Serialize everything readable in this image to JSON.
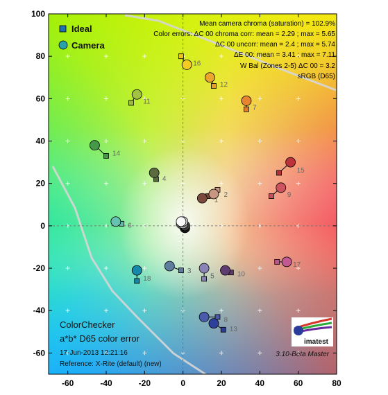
{
  "chart_data": {
    "type": "scatter",
    "xlim": [
      -70,
      80
    ],
    "ylim": [
      -70,
      100
    ],
    "x_ticks": [
      "-60",
      "-40",
      "-20",
      "0",
      "20",
      "40",
      "60",
      "80"
    ],
    "y_ticks": [
      "100",
      "80",
      "60",
      "40",
      "20",
      "0",
      "-20",
      "-40",
      "-60"
    ],
    "grid": false,
    "legend": {
      "position": "top-left",
      "ideal_label": "Ideal",
      "camera_label": "Camera"
    },
    "annotations": [
      "Mean camera chroma (saturation) = 102.9%",
      "Color errors: ΔC 00 chroma corr:  mean = 2.29 ;  max = 5.65",
      "ΔC 00 uncorr:  mean = 2.4 ;  max = 5.74",
      "ΔE 00:  mean = 3.41 ;  max = 7.11",
      "W Bal (Zones 2-5) ΔC 00 = 3.2",
      "sRGB (D65)"
    ],
    "footer": {
      "title1": "ColorChecker",
      "title2": "a*b* D65 color error",
      "date": "17-Jun-2013 12:21:16",
      "reference": "Reference: X-Rite (default) (new)",
      "version": "3.10-Beta  Master",
      "logo": "imatest"
    },
    "series": [
      {
        "name": "Ideal",
        "marker": "square",
        "points": [
          {
            "label": "1",
            "x": 13,
            "y": 14,
            "color": "#76483a"
          },
          {
            "label": "2",
            "x": 18,
            "y": 17,
            "color": "#c4947f"
          },
          {
            "label": "3",
            "x": -1,
            "y": -21,
            "color": "#5e7a9a"
          },
          {
            "label": "4",
            "x": -14,
            "y": 22,
            "color": "#586a3e"
          },
          {
            "label": "5",
            "x": 11,
            "y": -25,
            "color": "#8581b0"
          },
          {
            "label": "6",
            "x": -32,
            "y": 1,
            "color": "#62bcac"
          },
          {
            "label": "7",
            "x": 33,
            "y": 55,
            "color": "#e07e2e"
          },
          {
            "label": "8",
            "x": 18,
            "y": -43,
            "color": "#4b5aa5"
          },
          {
            "label": "9",
            "x": 46,
            "y": 14,
            "color": "#c4515c"
          },
          {
            "label": "10",
            "x": 25,
            "y": -22,
            "color": "#5d3c6b"
          },
          {
            "label": "11",
            "x": -27,
            "y": 58,
            "color": "#9dbb40"
          },
          {
            "label": "12",
            "x": 16,
            "y": 66,
            "color": "#e3a22b"
          },
          {
            "label": "13",
            "x": 21,
            "y": -49,
            "color": "#2c3f93"
          },
          {
            "label": "14",
            "x": -40,
            "y": 33,
            "color": "#459448"
          },
          {
            "label": "15",
            "x": 50,
            "y": 25,
            "color": "#b3323a"
          },
          {
            "label": "16",
            "x": -1,
            "y": 80,
            "color": "#eec51f"
          },
          {
            "label": "17",
            "x": 49,
            "y": -17,
            "color": "#bc568f"
          },
          {
            "label": "18",
            "x": -24,
            "y": -26,
            "color": "#1485a4"
          },
          {
            "label": "",
            "x": 0,
            "y": 0,
            "color": "#f3f3f2"
          },
          {
            "label": "",
            "x": 0,
            "y": 0,
            "color": "#c8c8c8"
          },
          {
            "label": "",
            "x": 0,
            "y": 0,
            "color": "#a0a0a0"
          },
          {
            "label": "",
            "x": 0,
            "y": 0,
            "color": "#7a7a7a"
          },
          {
            "label": "",
            "x": 0,
            "y": 0,
            "color": "#555555"
          },
          {
            "label": "",
            "x": 0,
            "y": 0,
            "color": "#343434"
          }
        ]
      },
      {
        "name": "Camera",
        "marker": "circle",
        "points": [
          {
            "label": "1",
            "x": 10,
            "y": 13,
            "color": "#7c4a3c"
          },
          {
            "label": "2",
            "x": 16,
            "y": 15,
            "color": "#c89682"
          },
          {
            "label": "3",
            "x": -7,
            "y": -19,
            "color": "#5f7d9e"
          },
          {
            "label": "4",
            "x": -15,
            "y": 25,
            "color": "#5a6c3f"
          },
          {
            "label": "5",
            "x": 11,
            "y": -20,
            "color": "#8a84b6"
          },
          {
            "label": "6",
            "x": -35,
            "y": 2,
            "color": "#66c2b0"
          },
          {
            "label": "7",
            "x": 33,
            "y": 59,
            "color": "#e88330"
          },
          {
            "label": "8",
            "x": 11,
            "y": -43,
            "color": "#4a5bac"
          },
          {
            "label": "9",
            "x": 51,
            "y": 18,
            "color": "#cc535f"
          },
          {
            "label": "10",
            "x": 22,
            "y": -21,
            "color": "#5e3c70"
          },
          {
            "label": "11",
            "x": -24,
            "y": 62,
            "color": "#a2c243"
          },
          {
            "label": "12",
            "x": 14,
            "y": 70,
            "color": "#eba62d"
          },
          {
            "label": "13",
            "x": 16,
            "y": -46,
            "color": "#2d409c"
          },
          {
            "label": "14",
            "x": -46,
            "y": 38,
            "color": "#46984a"
          },
          {
            "label": "15",
            "x": 56,
            "y": 30,
            "color": "#bc333c"
          },
          {
            "label": "16",
            "x": 2,
            "y": 76,
            "color": "#f4cb22"
          },
          {
            "label": "17",
            "x": 54,
            "y": -17,
            "color": "#c35992"
          },
          {
            "label": "18",
            "x": -24,
            "y": -21,
            "color": "#1689aa"
          },
          {
            "label": "",
            "x": 1,
            "y": -1,
            "color": "#181818"
          },
          {
            "label": "",
            "x": 1,
            "y": 0,
            "color": "#3a3a3a"
          },
          {
            "label": "",
            "x": -1,
            "y": 1,
            "color": "#7a7a7a"
          },
          {
            "label": "",
            "x": 0,
            "y": 1,
            "color": "#a8a8a8"
          },
          {
            "label": "",
            "x": 0,
            "y": 2,
            "color": "#d4d4d4"
          },
          {
            "label": "",
            "x": -1,
            "y": 2,
            "color": "#fafafa"
          }
        ]
      }
    ]
  }
}
